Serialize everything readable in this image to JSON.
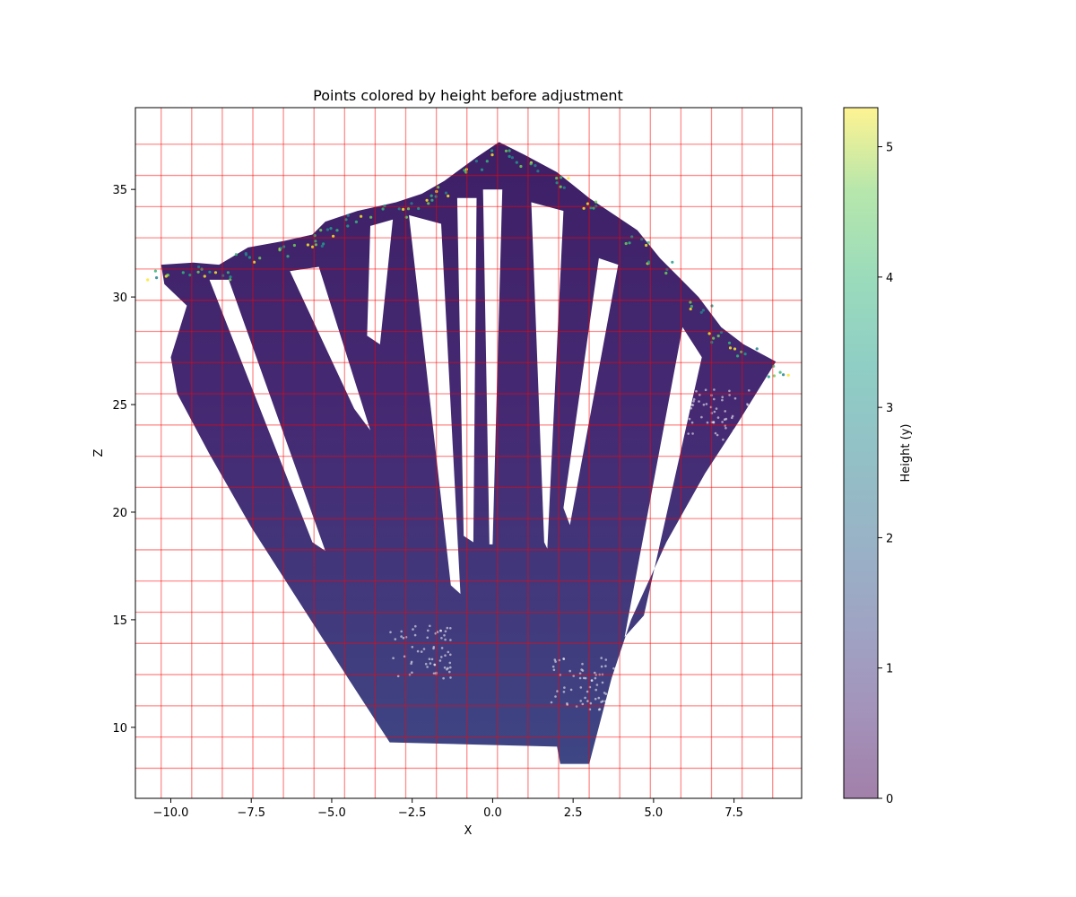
{
  "chart_data": {
    "type": "scatter",
    "title": "Points colored by height before adjustment",
    "xlabel": "X",
    "ylabel": "Z",
    "xlim": [
      -11.1,
      9.6
    ],
    "ylim": [
      6.7,
      38.8
    ],
    "x_ticks": [
      -10.0,
      -7.5,
      -5.0,
      -2.5,
      0.0,
      2.5,
      5.0,
      7.5
    ],
    "x_tick_labels": [
      "−10.0",
      "−7.5",
      "−5.0",
      "−2.5",
      "0.0",
      "2.5",
      "5.0",
      "7.5"
    ],
    "y_ticks": [
      10,
      15,
      20,
      25,
      30,
      35
    ],
    "y_tick_labels": [
      "10",
      "15",
      "20",
      "25",
      "30",
      "35"
    ],
    "grid_x": [
      -10.3,
      -9.35,
      -8.4,
      -7.45,
      -6.5,
      -5.55,
      -4.6,
      -3.65,
      -2.7,
      -1.75,
      -0.8,
      0.15,
      1.1,
      2.05,
      3.0,
      3.95,
      4.9,
      5.85,
      6.8,
      7.75,
      8.7
    ],
    "grid_y": [
      8.1,
      9.55,
      11.0,
      12.45,
      13.9,
      15.35,
      16.8,
      18.25,
      19.7,
      21.15,
      22.6,
      24.05,
      25.5,
      26.95,
      28.4,
      29.85,
      31.3,
      32.75,
      34.2,
      35.65,
      37.1
    ],
    "grid_color": "#ff0000",
    "grid": true,
    "colormap": "viridis",
    "colorbar": {
      "label": "Height (y)",
      "range": [
        0,
        5.3
      ],
      "ticks": [
        0,
        1,
        2,
        3,
        4,
        5
      ],
      "tick_labels": [
        "0",
        "1",
        "2",
        "3",
        "4",
        "5"
      ]
    },
    "footprint": [
      [
        -10.3,
        31.5
      ],
      [
        -9.3,
        31.6
      ],
      [
        -8.5,
        31.5
      ],
      [
        -7.6,
        32.3
      ],
      [
        -6.5,
        32.6
      ],
      [
        -5.6,
        32.9
      ],
      [
        -5.2,
        33.5
      ],
      [
        -4.2,
        34.0
      ],
      [
        -3.0,
        34.4
      ],
      [
        -2.2,
        34.8
      ],
      [
        -1.5,
        35.4
      ],
      [
        -0.5,
        36.5
      ],
      [
        0.2,
        37.2
      ],
      [
        1.0,
        36.6
      ],
      [
        2.0,
        35.8
      ],
      [
        3.0,
        34.6
      ],
      [
        4.5,
        33.1
      ],
      [
        5.2,
        31.8
      ],
      [
        6.4,
        30.0
      ],
      [
        7.1,
        28.6
      ],
      [
        7.8,
        27.8
      ],
      [
        8.8,
        27.0
      ],
      [
        7.6,
        24.1
      ],
      [
        6.6,
        21.8
      ],
      [
        5.4,
        18.6
      ],
      [
        4.3,
        15.0
      ],
      [
        3.7,
        12.3
      ],
      [
        3.0,
        8.3
      ],
      [
        2.1,
        8.3
      ],
      [
        2.0,
        9.1
      ],
      [
        -3.2,
        9.3
      ],
      [
        -4.5,
        12.3
      ],
      [
        -6.0,
        15.8
      ],
      [
        -7.5,
        19.3
      ],
      [
        -8.8,
        22.7
      ],
      [
        -9.8,
        25.5
      ],
      [
        -10.0,
        27.2
      ],
      [
        -9.5,
        29.6
      ],
      [
        -10.2,
        30.6
      ]
    ],
    "gaps": [
      [
        [
          -8.8,
          30.8
        ],
        [
          -8.2,
          30.8
        ],
        [
          -5.2,
          18.2
        ],
        [
          -5.6,
          18.6
        ]
      ],
      [
        [
          -6.3,
          31.2
        ],
        [
          -5.4,
          31.4
        ],
        [
          -3.8,
          23.8
        ],
        [
          -4.3,
          24.8
        ]
      ],
      [
        [
          -3.8,
          33.3
        ],
        [
          -3.1,
          33.6
        ],
        [
          -3.5,
          27.8
        ],
        [
          -3.9,
          28.2
        ]
      ],
      [
        [
          -2.6,
          33.8
        ],
        [
          -1.6,
          33.4
        ],
        [
          -1.0,
          16.2
        ],
        [
          -1.3,
          16.6
        ]
      ],
      [
        [
          -1.1,
          34.6
        ],
        [
          -0.5,
          34.6
        ],
        [
          -0.6,
          18.6
        ],
        [
          -0.9,
          18.9
        ]
      ],
      [
        [
          -0.3,
          35.0
        ],
        [
          0.3,
          35.0
        ],
        [
          0.0,
          18.5
        ],
        [
          -0.1,
          18.5
        ]
      ],
      [
        [
          1.2,
          34.4
        ],
        [
          2.2,
          34.0
        ],
        [
          1.7,
          18.3
        ],
        [
          1.6,
          18.6
        ]
      ],
      [
        [
          3.3,
          31.8
        ],
        [
          3.9,
          31.5
        ],
        [
          2.4,
          19.4
        ],
        [
          2.2,
          20.2
        ]
      ],
      [
        [
          5.9,
          28.6
        ],
        [
          6.5,
          27.2
        ],
        [
          4.7,
          15.2
        ],
        [
          4.1,
          14.2
        ]
      ]
    ],
    "series_points": "dense point cloud (not individually labeled)"
  }
}
